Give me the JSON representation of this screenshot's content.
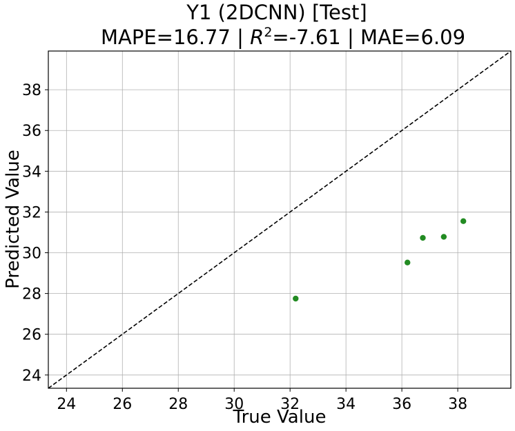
{
  "chart_data": {
    "type": "scatter",
    "title": "Y1 (2DCNN) [Test]",
    "subtitle_parts": {
      "mape": "MAPE=16.77 | ",
      "r_symbol": "R",
      "r_exp": "2",
      "r_rest": "=-7.61 | MAE=6.09"
    },
    "xlabel": "True Value",
    "ylabel": "Predicted Value",
    "xlim": [
      23.35,
      39.9
    ],
    "ylim": [
      23.35,
      39.9
    ],
    "xticks": [
      24,
      26,
      28,
      30,
      32,
      34,
      36,
      38
    ],
    "yticks": [
      24,
      26,
      28,
      30,
      32,
      34,
      36,
      38
    ],
    "grid": true,
    "point_color": "#228b22",
    "reference_line": {
      "style": "dashed",
      "color": "#000000",
      "from": [
        23.35,
        23.35
      ],
      "to": [
        39.9,
        39.9
      ]
    },
    "points": [
      {
        "x": 32.2,
        "y": 27.75
      },
      {
        "x": 36.2,
        "y": 29.52
      },
      {
        "x": 36.75,
        "y": 30.73
      },
      {
        "x": 37.5,
        "y": 30.78
      },
      {
        "x": 38.2,
        "y": 31.55
      }
    ]
  }
}
